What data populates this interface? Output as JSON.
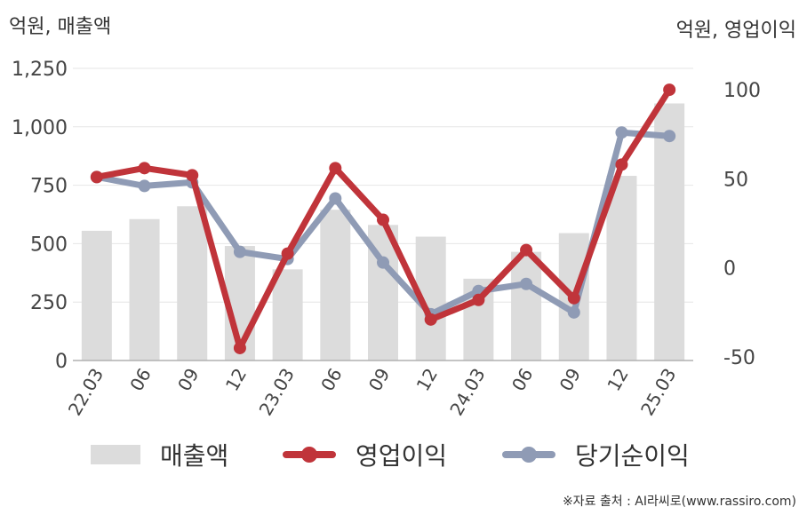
{
  "units": {
    "left": "억원, 매출액",
    "right": "억원, 영업이익"
  },
  "legend": {
    "revenue": "매출액",
    "operating": "영업이익",
    "net": "당기순이익"
  },
  "source": "※자료 출처 : AI라씨로(www.rassiro.com)",
  "colors": {
    "revenue": "#dcdcdc",
    "operating": "#c0343a",
    "net": "#8f9bb5",
    "grid": "#e6e6e6",
    "axis": "#b0b0b0"
  },
  "chart_data": {
    "type": "bar+line",
    "categories": [
      "22.03",
      "06",
      "09",
      "12",
      "23.03",
      "06",
      "09",
      "12",
      "24.03",
      "06",
      "09",
      "12",
      "25.03"
    ],
    "y_left": {
      "ticks": [
        "0",
        "250",
        "500",
        "750",
        "1,000",
        "1,250"
      ],
      "ylim": [
        0,
        1250
      ]
    },
    "y_right": {
      "ticks": [
        "-50",
        "0",
        "50",
        "100"
      ],
      "ylim": [
        -52,
        112
      ]
    },
    "series": [
      {
        "name": "매출액",
        "type": "bar",
        "axis": "left",
        "values": [
          555,
          605,
          660,
          490,
          390,
          645,
          580,
          530,
          350,
          465,
          545,
          790,
          1100
        ]
      },
      {
        "name": "영업이익",
        "type": "line",
        "axis": "right",
        "values": [
          51,
          56,
          52,
          -45,
          8,
          56,
          27,
          -29,
          -18,
          10,
          -17,
          58,
          100
        ]
      },
      {
        "name": "당기순이익",
        "type": "line",
        "axis": "right",
        "values": [
          51,
          46,
          48,
          9,
          5,
          39,
          3,
          -26,
          -13,
          -9,
          -25,
          76,
          74
        ]
      }
    ],
    "grid": true,
    "legend_position": "bottom"
  }
}
